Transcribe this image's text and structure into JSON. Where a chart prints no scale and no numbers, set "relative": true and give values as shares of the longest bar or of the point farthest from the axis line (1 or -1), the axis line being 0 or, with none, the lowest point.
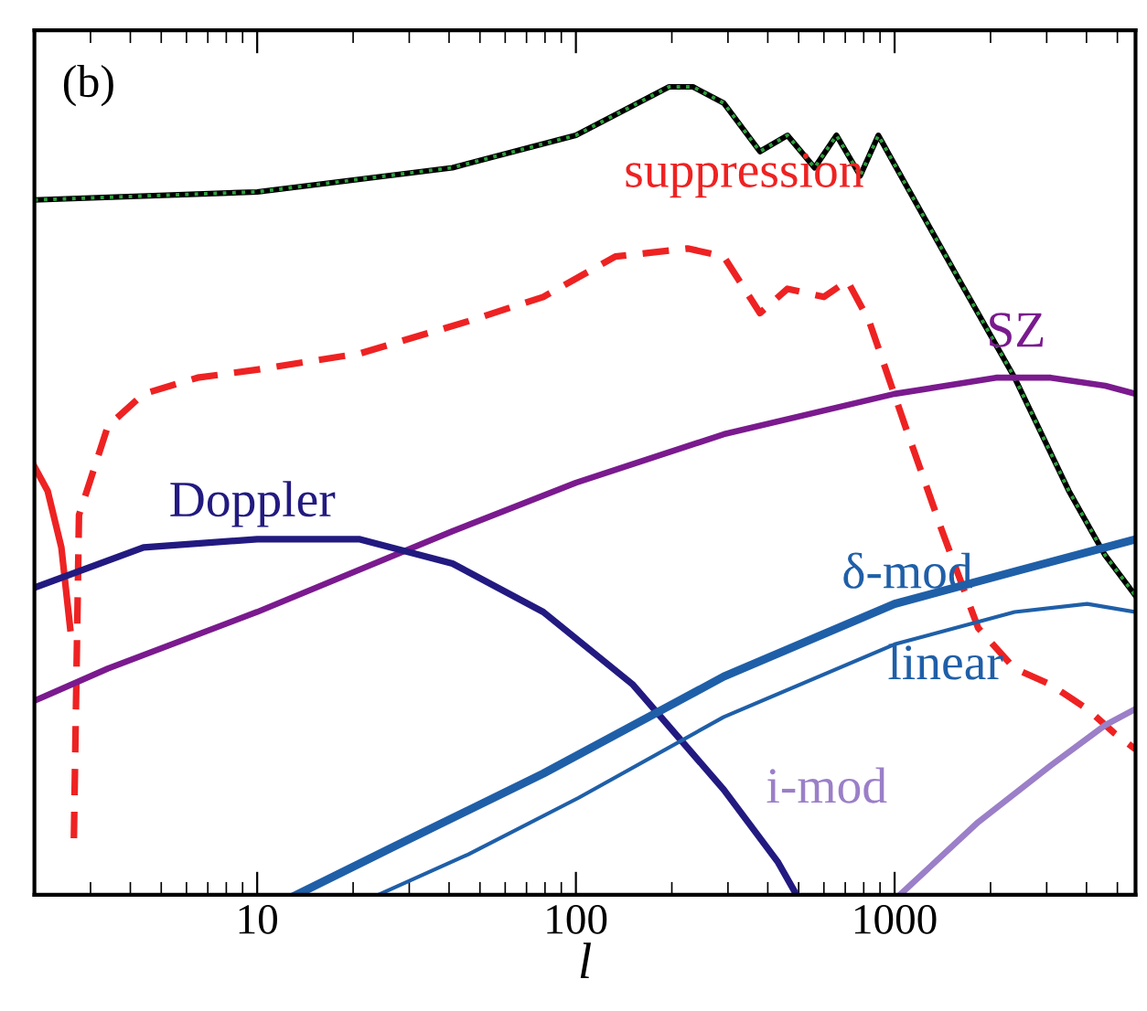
{
  "chart_data": {
    "type": "line",
    "relative": true,
    "log": "x",
    "xlabel": "l",
    "xlim": [
      2,
      5700
    ],
    "xticks": [
      10,
      100,
      1000
    ],
    "grid": false,
    "legend": false,
    "annotations": [
      "(b)"
    ],
    "series": [
      {
        "color": "#000000",
        "line_style": "solid",
        "x": [
          2,
          10,
          41,
          100,
          196,
          233,
          291,
          378,
          461,
          561,
          657,
          780,
          889,
          1080,
          1600,
          2380,
          3520,
          4580,
          5700
        ],
        "values": [
          0.86,
          0.87,
          0.9,
          0.94,
          1.0,
          1.0,
          0.98,
          0.92,
          0.94,
          0.9,
          0.94,
          0.89,
          0.94,
          0.88,
          0.76,
          0.64,
          0.5,
          0.42,
          0.37
        ]
      },
      {
        "color": "#2e9e3e",
        "line_style": "dotted",
        "x": [
          2,
          10,
          41,
          100,
          196,
          233,
          291,
          378,
          461,
          561,
          657,
          780,
          889,
          1080,
          1600,
          2380,
          3520,
          4580,
          5700
        ],
        "values": [
          0.86,
          0.87,
          0.9,
          0.94,
          1.0,
          1.0,
          0.98,
          0.92,
          0.94,
          0.9,
          0.94,
          0.89,
          0.94,
          0.88,
          0.76,
          0.64,
          0.5,
          0.42,
          0.37
        ]
      },
      {
        "color": "#ee2222",
        "line_style": "solid",
        "x": [
          2,
          2.2,
          2.43,
          2.59
        ],
        "values": [
          0.53,
          0.5,
          0.43,
          0.33
        ]
      },
      {
        "name": "suppression",
        "color": "#ee2222",
        "line_style": "dashed",
        "x": [
          2.66,
          2.76,
          3.4,
          4.4,
          6.5,
          10,
          21,
          46,
          79,
          133,
          224,
          291,
          378,
          461,
          600,
          711,
          832,
          1080,
          1410,
          1830,
          2380,
          3090,
          4020,
          4890,
          5700
        ],
        "values": [
          0.07,
          0.47,
          0.58,
          0.62,
          0.64,
          0.65,
          0.67,
          0.71,
          0.74,
          0.79,
          0.8,
          0.79,
          0.72,
          0.75,
          0.74,
          0.76,
          0.71,
          0.58,
          0.45,
          0.33,
          0.28,
          0.26,
          0.23,
          0.2,
          0.18
        ]
      },
      {
        "name": "SZ",
        "color": "#7a1a8e",
        "line_style": "solid",
        "x": [
          2,
          3.4,
          10,
          41,
          100,
          291,
          1000,
          2080,
          3090,
          4580,
          5700
        ],
        "values": [
          0.24,
          0.28,
          0.35,
          0.45,
          0.51,
          0.57,
          0.62,
          0.64,
          0.64,
          0.63,
          0.62
        ]
      },
      {
        "name": "Doppler",
        "color": "#221a80",
        "line_style": "solid",
        "x": [
          2,
          4.4,
          10,
          21,
          41,
          79,
          151,
          291,
          431,
          492
        ],
        "values": [
          0.38,
          0.43,
          0.44,
          0.44,
          0.41,
          0.35,
          0.26,
          0.13,
          0.04,
          0
        ]
      },
      {
        "name": "δ-mod",
        "color": "#1f5fa8",
        "line_style": "solid",
        "x": [
          13.3,
          27,
          79,
          291,
          1000,
          2380,
          5700
        ],
        "values": [
          0,
          0.06,
          0.15,
          0.27,
          0.36,
          0.4,
          0.44
        ]
      },
      {
        "name": "linear",
        "color": "#1f5fa8",
        "line_style": "solid",
        "x": [
          24,
          46,
          102,
          291,
          1000,
          2380,
          4020,
          5700
        ],
        "values": [
          0,
          0.05,
          0.12,
          0.22,
          0.31,
          0.35,
          0.36,
          0.35
        ]
      },
      {
        "name": "i-mod",
        "color": "#9b7fc8",
        "line_style": "solid",
        "x": [
          1040,
          1830,
          3090,
          4580,
          5700
        ],
        "values": [
          0,
          0.09,
          0.16,
          0.21,
          0.23
        ]
      }
    ]
  }
}
